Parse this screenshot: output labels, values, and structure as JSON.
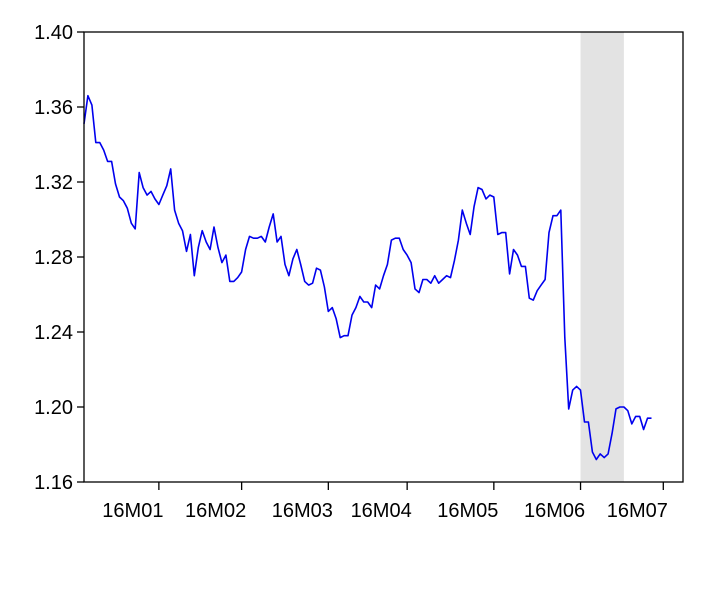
{
  "chart_data": {
    "type": "line",
    "title": "",
    "xlabel": "",
    "ylabel": "",
    "ylim": [
      1.16,
      1.4
    ],
    "yticks": [
      1.16,
      1.2,
      1.24,
      1.28,
      1.32,
      1.36,
      1.4
    ],
    "ytick_labels": [
      "1.16",
      "1.20",
      "1.24",
      "1.28",
      "1.32",
      "1.36",
      "1.40"
    ],
    "xlim": [
      0,
      152
    ],
    "xticks": [
      {
        "label": "16M01",
        "index": 19
      },
      {
        "label": "16M02",
        "index": 40
      },
      {
        "label": "16M03",
        "index": 62
      },
      {
        "label": "16M04",
        "index": 82
      },
      {
        "label": "16M05",
        "index": 104
      },
      {
        "label": "16M06",
        "index": 126
      },
      {
        "label": "16M07",
        "index": 147
      }
    ],
    "shaded_region": [
      126,
      137
    ],
    "colors": {
      "line": "#0000ee",
      "shade": "#e3e3e3",
      "axis": "#000000"
    },
    "series": [
      {
        "values": [
          1.351,
          1.366,
          1.361,
          1.341,
          1.341,
          1.337,
          1.331,
          1.331,
          1.319,
          1.312,
          1.31,
          1.306,
          1.298,
          1.295,
          1.325,
          1.317,
          1.313,
          1.315,
          1.311,
          1.308,
          1.313,
          1.318,
          1.327,
          1.305,
          1.298,
          1.294,
          1.283,
          1.292,
          1.27,
          1.285,
          1.294,
          1.288,
          1.284,
          1.296,
          1.285,
          1.277,
          1.281,
          1.267,
          1.267,
          1.269,
          1.272,
          1.284,
          1.291,
          1.29,
          1.29,
          1.291,
          1.288,
          1.296,
          1.303,
          1.288,
          1.291,
          1.276,
          1.27,
          1.279,
          1.284,
          1.276,
          1.267,
          1.265,
          1.266,
          1.274,
          1.273,
          1.264,
          1.251,
          1.253,
          1.247,
          1.237,
          1.238,
          1.238,
          1.249,
          1.253,
          1.259,
          1.256,
          1.256,
          1.253,
          1.265,
          1.263,
          1.27,
          1.276,
          1.289,
          1.29,
          1.29,
          1.284,
          1.281,
          1.277,
          1.263,
          1.261,
          1.268,
          1.268,
          1.266,
          1.27,
          1.266,
          1.268,
          1.27,
          1.269,
          1.278,
          1.289,
          1.305,
          1.298,
          1.292,
          1.307,
          1.317,
          1.316,
          1.311,
          1.313,
          1.312,
          1.292,
          1.293,
          1.293,
          1.271,
          1.284,
          1.281,
          1.275,
          1.275,
          1.258,
          1.257,
          1.262,
          1.265,
          1.268,
          1.293,
          1.302,
          1.302,
          1.305,
          1.237,
          1.199,
          1.209,
          1.211,
          1.209,
          1.192,
          1.192,
          1.176,
          1.172,
          1.175,
          1.173,
          1.175,
          1.186,
          1.199,
          1.2,
          1.2,
          1.198,
          1.191,
          1.195,
          1.195,
          1.188,
          1.194,
          1.194
        ]
      }
    ]
  }
}
